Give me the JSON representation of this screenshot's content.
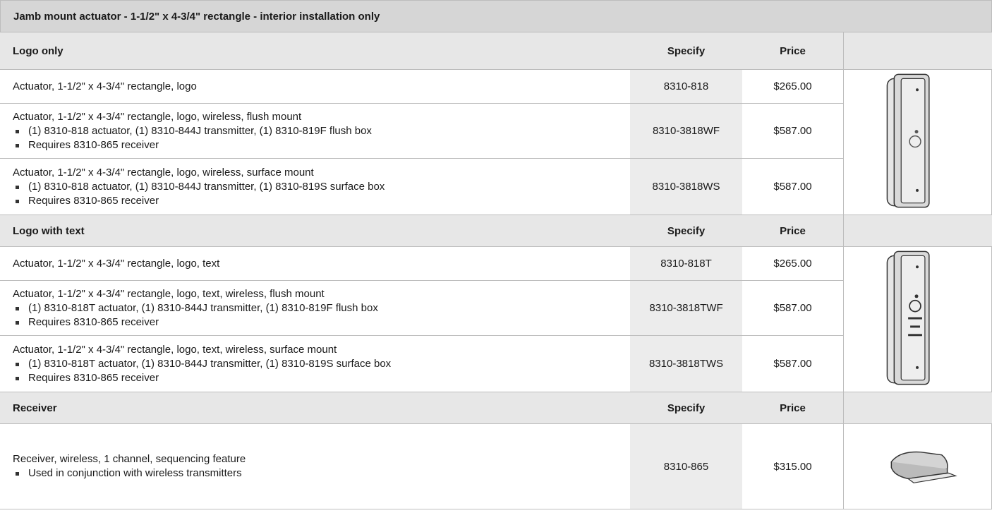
{
  "title": "Jamb mount actuator - 1-1/2\" x 4-3/4\" rectangle - interior installation only",
  "sections": [
    {
      "header": "Logo only",
      "specify_label": "Specify",
      "price_label": "Price",
      "rows": [
        {
          "description": "Actuator, 1-1/2\" x 4-3/4\" rectangle, logo",
          "bullets": [],
          "specify": "8310-818",
          "price": "$265.00"
        },
        {
          "description": "Actuator, 1-1/2\" x 4-3/4\" rectangle, logo, wireless, flush mount",
          "bullets": [
            "(1) 8310-818 actuator, (1) 8310-844J transmitter, (1) 8310-819F flush box",
            "Requires 8310-865 receiver"
          ],
          "specify": "8310-3818WF",
          "price": "$587.00"
        },
        {
          "description": "Actuator, 1-1/2\" x 4-3/4\" rectangle, logo, wireless, surface mount",
          "bullets": [
            "(1) 8310-818 actuator, (1) 8310-844J transmitter, (1) 8310-819S surface box",
            "Requires 8310-865 receiver"
          ],
          "specify": "8310-3818WS",
          "price": "$587.00"
        }
      ]
    },
    {
      "header": "Logo with text",
      "specify_label": "Specify",
      "price_label": "Price",
      "rows": [
        {
          "description": "Actuator, 1-1/2\" x 4-3/4\" rectangle, logo, text",
          "bullets": [],
          "specify": "8310-818T",
          "price": "$265.00"
        },
        {
          "description": "Actuator, 1-1/2\" x 4-3/4\" rectangle, logo, text, wireless, flush mount",
          "bullets": [
            "(1) 8310-818T actuator, (1) 8310-844J transmitter, (1) 8310-819F flush box",
            "Requires 8310-865 receiver"
          ],
          "specify": "8310-3818TWF",
          "price": "$587.00"
        },
        {
          "description": "Actuator, 1-1/2\" x 4-3/4\" rectangle, logo, text, wireless, surface mount",
          "bullets": [
            "(1) 8310-818T actuator, (1) 8310-844J transmitter, (1) 8310-819S surface box",
            "Requires 8310-865 receiver"
          ],
          "specify": "8310-3818TWS",
          "price": "$587.00"
        }
      ]
    },
    {
      "header": "Receiver",
      "specify_label": "Specify",
      "price_label": "Price",
      "rows": [
        {
          "description": "Receiver, wireless, 1 channel, sequencing feature",
          "bullets": [
            "Used in conjunction with wireless transmitters"
          ],
          "specify": "8310-865",
          "price": "$315.00"
        }
      ]
    }
  ]
}
